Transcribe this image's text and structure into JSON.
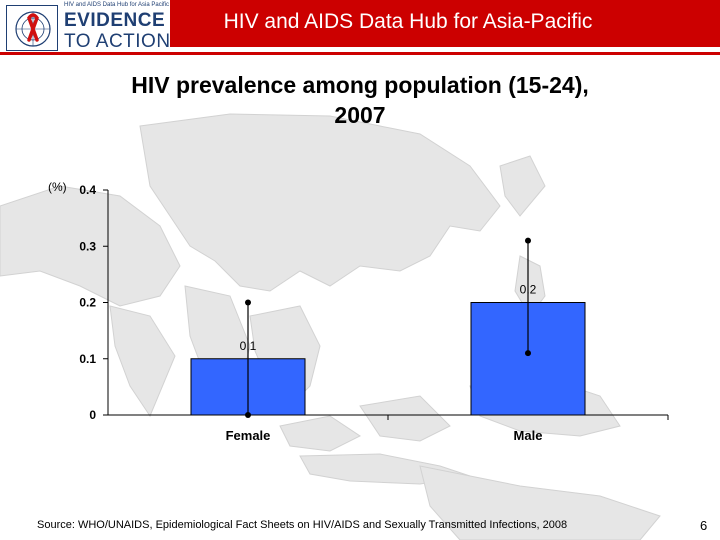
{
  "header": {
    "title": "HIV and AIDS Data Hub for Asia-Pacific",
    "logo": {
      "tagline": "HIV and AIDS Data Hub for Asia Pacific",
      "line1": "EVIDENCE",
      "line2": "TO ACTION",
      "emblem_icon": "red-ribbon-un-emblem-icon"
    },
    "colors": {
      "bar": "#cc0000",
      "logo_text": "#1f3f73"
    }
  },
  "slide": {
    "title_line1": "HIV prevalence among population (15-24),",
    "title_line2": "2007",
    "source": "Source: WHO/UNAIDS, Epidemiological Fact Sheets on HIV/AIDS and Sexually Transmitted Infections, 2008",
    "page_number": "6"
  },
  "chart_data": {
    "type": "bar",
    "title": "HIV prevalence among population (15-24), 2007",
    "ylabel": "(%)",
    "xlabel": "",
    "categories": [
      "Female",
      "Male"
    ],
    "values": [
      0.1,
      0.2
    ],
    "data_labels": [
      "0.1",
      "0.2"
    ],
    "error_ranges": [
      [
        0.0,
        0.2
      ],
      [
        0.11,
        0.31
      ]
    ],
    "ylim": [
      0,
      0.4
    ],
    "yticks": [
      0,
      0.1,
      0.2,
      0.3,
      0.4
    ],
    "ytick_labels": [
      "0",
      "0.1",
      "0.2",
      "0.3",
      "0.4"
    ],
    "bar_color": "#3366ff",
    "grid": false,
    "legend": "none"
  }
}
